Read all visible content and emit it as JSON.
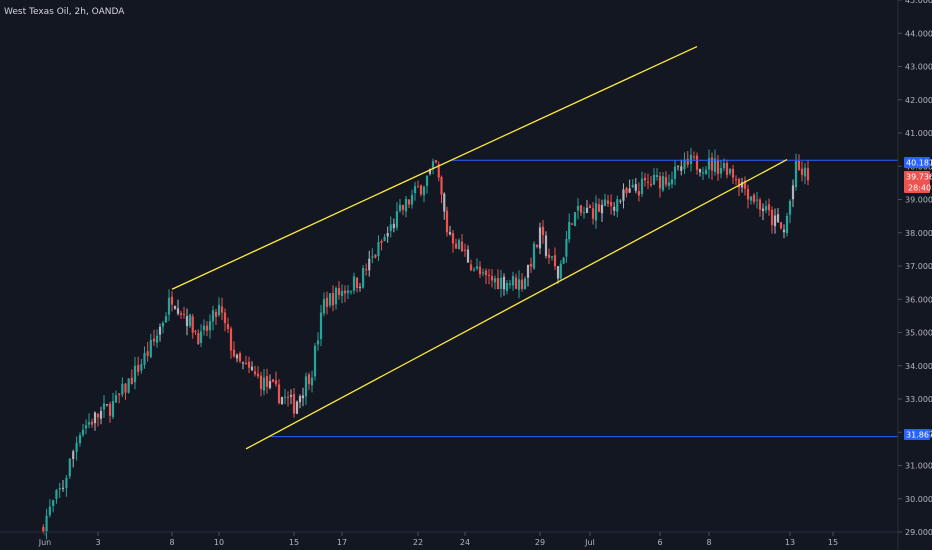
{
  "header": {
    "title": "West Texas Oil, 2h, OANDA"
  },
  "price_badges": {
    "resistance": "40.181",
    "last": "39.736",
    "countdown": "28:40",
    "support": "31.867"
  },
  "colors": {
    "background": "#131722",
    "up": "#26a69a",
    "down": "#ef5350",
    "neutral_candle": "#b2b5be",
    "channel_line": "#ffeb3b",
    "level_line": "#2962ff",
    "axis_text": "#b2b5be"
  },
  "chart_data": {
    "type": "candlestick",
    "title": "West Texas Oil, 2h, OANDA",
    "ylim": [
      29.0,
      45.0
    ],
    "y_ticks": [
      "29.000",
      "30.000",
      "31.000",
      "32.000",
      "33.000",
      "34.000",
      "35.000",
      "36.000",
      "37.000",
      "38.000",
      "39.000",
      "40.000",
      "41.000",
      "42.000",
      "43.000",
      "44.000",
      "45.000"
    ],
    "x_ticks": [
      "Jun",
      "3",
      "8",
      "10",
      "15",
      "17",
      "22",
      "24",
      "29",
      "Jul",
      "6",
      "8",
      "13",
      "15"
    ],
    "price_path": [
      [
        "Jun",
        29.1
      ],
      [
        "Jun",
        30.4
      ],
      [
        "3",
        32.1
      ],
      [
        "3",
        32.9
      ],
      [
        "8",
        34.7
      ],
      [
        "8",
        36.1
      ],
      [
        "8",
        35.3
      ],
      [
        "10",
        34.8
      ],
      [
        "10",
        35.7
      ],
      [
        "10",
        34.1
      ],
      [
        "15",
        33.2
      ],
      [
        "15",
        32.8
      ],
      [
        "15",
        33.9
      ],
      [
        "17",
        35.9
      ],
      [
        "17",
        36.6
      ],
      [
        "22",
        38.6
      ],
      [
        "22",
        40.0
      ],
      [
        "24",
        38.1
      ],
      [
        "24",
        36.6
      ],
      [
        "29",
        36.5
      ],
      [
        "29",
        37.9
      ],
      [
        "29",
        36.7
      ],
      [
        "Jul",
        38.5
      ],
      [
        "Jul",
        38.8
      ],
      [
        "6",
        39.4
      ],
      [
        "6",
        39.8
      ],
      [
        "8",
        40.1
      ],
      [
        "8",
        40.0
      ],
      [
        "13",
        38.4
      ],
      [
        "13",
        38.0
      ],
      [
        "13",
        39.9
      ],
      [
        "13",
        39.7
      ]
    ],
    "horizontal_levels": [
      {
        "label": "40.181",
        "value": 40.181
      },
      {
        "label": "31.867",
        "value": 31.867
      }
    ],
    "trendlines": [
      {
        "from": [
          "8",
          36.3
        ],
        "to": [
          "15",
          43.6
        ]
      },
      {
        "from": [
          "10",
          31.5
        ],
        "to": [
          "13",
          40.2
        ]
      }
    ],
    "last_price": 39.736,
    "grid": false
  }
}
